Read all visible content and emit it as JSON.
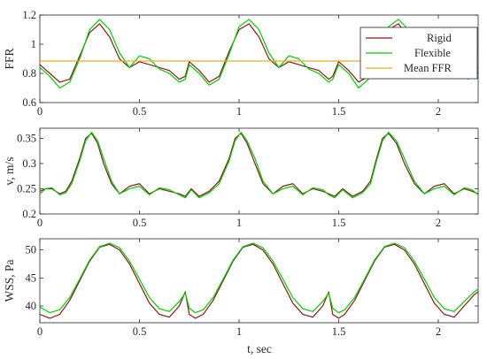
{
  "chart_data": [
    {
      "type": "line",
      "ylabel": "FFR",
      "xlabel": "",
      "xlim": [
        0,
        2.2
      ],
      "ylim": [
        0.6,
        1.2
      ],
      "xticks": [
        0,
        0.5,
        1,
        1.5,
        2
      ],
      "xtick_labels": [
        "0",
        "0.5",
        "1",
        "1.5",
        "2"
      ],
      "yticks": [
        0.6,
        0.8,
        1,
        1.2
      ],
      "ytick_labels": [
        "0.6",
        "0.8",
        "1",
        "1.2"
      ],
      "legend": {
        "placement": "top-right",
        "entries": [
          "Rigid",
          "Flexible",
          "Mean FFR"
        ]
      },
      "series": [
        {
          "name": "Rigid",
          "color": "#8b1a1a",
          "x": [
            0,
            0.05,
            0.1,
            0.15,
            0.2,
            0.25,
            0.3,
            0.35,
            0.4,
            0.45,
            0.5,
            0.55,
            0.6,
            0.65,
            0.7,
            0.73,
            0.75,
            0.8,
            0.85,
            0.9,
            0.95,
            1.0,
            1.05,
            1.1,
            1.15,
            1.2,
            1.25,
            1.3,
            1.35,
            1.4,
            1.45,
            1.47,
            1.5,
            1.55,
            1.6,
            1.65,
            1.7,
            1.75,
            1.8,
            1.85,
            1.9,
            1.95,
            2.0,
            2.05,
            2.1,
            2.15,
            2.2
          ],
          "y": [
            0.86,
            0.8,
            0.74,
            0.76,
            0.92,
            1.08,
            1.14,
            1.05,
            0.9,
            0.84,
            0.88,
            0.86,
            0.84,
            0.82,
            0.76,
            0.78,
            0.88,
            0.82,
            0.74,
            0.78,
            0.95,
            1.1,
            1.14,
            1.05,
            0.9,
            0.84,
            0.88,
            0.86,
            0.84,
            0.82,
            0.76,
            0.78,
            0.88,
            0.82,
            0.74,
            0.78,
            0.95,
            1.1,
            1.14,
            1.05,
            0.9,
            0.84,
            0.88,
            0.86,
            0.84,
            0.8,
            0.84
          ]
        },
        {
          "name": "Flexible",
          "color": "#00cc00",
          "x": [
            0,
            0.05,
            0.1,
            0.15,
            0.2,
            0.25,
            0.3,
            0.35,
            0.4,
            0.45,
            0.5,
            0.55,
            0.6,
            0.65,
            0.7,
            0.73,
            0.75,
            0.8,
            0.85,
            0.9,
            0.95,
            1.0,
            1.05,
            1.1,
            1.15,
            1.2,
            1.25,
            1.3,
            1.35,
            1.4,
            1.45,
            1.47,
            1.5,
            1.55,
            1.6,
            1.65,
            1.7,
            1.75,
            1.8,
            1.85,
            1.9,
            1.95,
            2.0,
            2.05,
            2.1,
            2.15,
            2.2
          ],
          "y": [
            0.84,
            0.78,
            0.7,
            0.74,
            0.9,
            1.1,
            1.17,
            1.1,
            0.94,
            0.84,
            0.92,
            0.9,
            0.83,
            0.8,
            0.74,
            0.76,
            0.86,
            0.8,
            0.72,
            0.76,
            0.93,
            1.12,
            1.17,
            1.1,
            0.94,
            0.84,
            0.92,
            0.9,
            0.83,
            0.8,
            0.74,
            0.76,
            0.86,
            0.8,
            0.7,
            0.76,
            0.93,
            1.12,
            1.17,
            1.1,
            0.94,
            0.84,
            0.92,
            0.9,
            0.83,
            0.76,
            0.82
          ]
        },
        {
          "name": "Mean FFR",
          "color": "#e0b020",
          "x": [
            0,
            2.2
          ],
          "y": [
            0.885,
            0.885
          ]
        }
      ]
    },
    {
      "type": "line",
      "ylabel": "v, m/s",
      "xlabel": "",
      "xlim": [
        0,
        2.2
      ],
      "ylim": [
        0.2,
        0.37
      ],
      "xticks": [
        0,
        0.5,
        1,
        1.5,
        2
      ],
      "xtick_labels": [
        "0",
        "0.5",
        "1",
        "1.5",
        "2"
      ],
      "yticks": [
        0.2,
        0.25,
        0.3,
        0.35
      ],
      "ytick_labels": [
        "0.2",
        "0.25",
        "0.3",
        "0.35"
      ],
      "series": [
        {
          "name": "Rigid",
          "color": "#8b1a1a",
          "x": [
            0,
            0.03,
            0.06,
            0.1,
            0.13,
            0.16,
            0.2,
            0.23,
            0.26,
            0.29,
            0.32,
            0.36,
            0.4,
            0.45,
            0.5,
            0.55,
            0.6,
            0.65,
            0.7,
            0.73,
            0.76,
            0.8,
            0.85,
            0.9,
            0.95,
            0.98,
            1.01,
            1.04,
            1.08,
            1.12,
            1.17,
            1.22,
            1.27,
            1.32,
            1.37,
            1.42,
            1.45,
            1.48,
            1.52,
            1.57,
            1.62,
            1.66,
            1.69,
            1.72,
            1.75,
            1.79,
            1.83,
            1.88,
            1.93,
            1.98,
            2.03,
            2.08,
            2.13,
            2.17,
            2.2
          ],
          "y": [
            0.245,
            0.25,
            0.25,
            0.24,
            0.245,
            0.265,
            0.31,
            0.35,
            0.36,
            0.34,
            0.3,
            0.26,
            0.24,
            0.255,
            0.26,
            0.24,
            0.25,
            0.245,
            0.24,
            0.235,
            0.25,
            0.235,
            0.245,
            0.265,
            0.31,
            0.35,
            0.36,
            0.34,
            0.3,
            0.26,
            0.24,
            0.255,
            0.26,
            0.24,
            0.25,
            0.245,
            0.24,
            0.235,
            0.25,
            0.235,
            0.245,
            0.265,
            0.31,
            0.35,
            0.36,
            0.34,
            0.3,
            0.26,
            0.24,
            0.255,
            0.26,
            0.24,
            0.25,
            0.245,
            0.24
          ]
        },
        {
          "name": "Flexible",
          "color": "#00cc00",
          "x": [
            0,
            0.03,
            0.06,
            0.1,
            0.13,
            0.16,
            0.2,
            0.23,
            0.26,
            0.29,
            0.32,
            0.36,
            0.4,
            0.45,
            0.5,
            0.55,
            0.6,
            0.65,
            0.7,
            0.73,
            0.76,
            0.8,
            0.85,
            0.9,
            0.95,
            0.98,
            1.01,
            1.04,
            1.08,
            1.12,
            1.17,
            1.22,
            1.27,
            1.32,
            1.37,
            1.42,
            1.45,
            1.48,
            1.52,
            1.57,
            1.62,
            1.66,
            1.69,
            1.72,
            1.75,
            1.79,
            1.83,
            1.88,
            1.93,
            1.98,
            2.03,
            2.08,
            2.13,
            2.17,
            2.2
          ],
          "y": [
            0.24,
            0.25,
            0.252,
            0.238,
            0.242,
            0.26,
            0.305,
            0.345,
            0.362,
            0.345,
            0.31,
            0.265,
            0.24,
            0.25,
            0.255,
            0.238,
            0.252,
            0.248,
            0.238,
            0.232,
            0.248,
            0.232,
            0.242,
            0.26,
            0.305,
            0.345,
            0.362,
            0.345,
            0.31,
            0.265,
            0.24,
            0.25,
            0.255,
            0.238,
            0.252,
            0.248,
            0.238,
            0.232,
            0.248,
            0.232,
            0.242,
            0.26,
            0.305,
            0.345,
            0.362,
            0.345,
            0.31,
            0.265,
            0.24,
            0.25,
            0.255,
            0.238,
            0.252,
            0.248,
            0.238
          ]
        }
      ]
    },
    {
      "type": "line",
      "ylabel": "WSS, Pa",
      "xlabel": "t, sec",
      "xlim": [
        0,
        2.2
      ],
      "ylim": [
        37,
        52
      ],
      "xticks": [
        0,
        0.5,
        1,
        1.5,
        2
      ],
      "xtick_labels": [
        "0",
        "0.5",
        "1",
        "1.5",
        "2"
      ],
      "yticks": [
        40,
        45,
        50
      ],
      "ytick_labels": [
        "40",
        "45",
        "50"
      ],
      "series": [
        {
          "name": "Rigid",
          "color": "#8b1a1a",
          "x": [
            0,
            0.05,
            0.1,
            0.15,
            0.2,
            0.25,
            0.3,
            0.35,
            0.4,
            0.45,
            0.5,
            0.55,
            0.6,
            0.65,
            0.7,
            0.73,
            0.75,
            0.78,
            0.82,
            0.87,
            0.92,
            0.97,
            1.02,
            1.07,
            1.12,
            1.17,
            1.22,
            1.27,
            1.32,
            1.37,
            1.42,
            1.45,
            1.47,
            1.5,
            1.53,
            1.58,
            1.63,
            1.68,
            1.73,
            1.78,
            1.83,
            1.88,
            1.93,
            1.98,
            2.03,
            2.08,
            2.13,
            2.18,
            2.2
          ],
          "y": [
            38.5,
            37.8,
            38.5,
            41,
            44.5,
            48,
            50.5,
            51,
            50,
            47.5,
            44,
            40.5,
            38.5,
            38,
            40,
            42.5,
            38.5,
            37.8,
            38.5,
            41,
            44.5,
            48,
            50.5,
            51,
            50,
            47.5,
            44,
            40.5,
            38.5,
            38,
            40,
            42.5,
            38.5,
            37.8,
            38.5,
            41,
            44.5,
            48,
            50.5,
            51,
            50,
            47.5,
            44,
            40.5,
            38.5,
            38,
            40,
            42,
            42.5
          ]
        },
        {
          "name": "Flexible",
          "color": "#00cc00",
          "x": [
            0,
            0.05,
            0.1,
            0.15,
            0.2,
            0.25,
            0.3,
            0.35,
            0.4,
            0.45,
            0.5,
            0.55,
            0.6,
            0.65,
            0.7,
            0.73,
            0.75,
            0.78,
            0.82,
            0.87,
            0.92,
            0.97,
            1.02,
            1.07,
            1.12,
            1.17,
            1.22,
            1.27,
            1.32,
            1.37,
            1.42,
            1.45,
            1.47,
            1.5,
            1.53,
            1.58,
            1.63,
            1.68,
            1.73,
            1.78,
            1.83,
            1.88,
            1.93,
            1.98,
            2.03,
            2.08,
            2.13,
            2.18,
            2.2
          ],
          "y": [
            39.8,
            38.8,
            39.3,
            41.5,
            44.8,
            48.2,
            50.6,
            51.2,
            50.4,
            48,
            44.8,
            41.5,
            39.5,
            39,
            40.8,
            42.3,
            39.6,
            38.8,
            39.3,
            41.5,
            44.8,
            48.2,
            50.6,
            51.2,
            50.4,
            48,
            44.8,
            41.5,
            39.5,
            39,
            40.8,
            42.3,
            39.6,
            38.8,
            39.3,
            41.5,
            44.8,
            48.2,
            50.6,
            51.2,
            50.4,
            48,
            44.8,
            41.5,
            39.5,
            39,
            40.8,
            42.5,
            43
          ]
        }
      ]
    }
  ]
}
